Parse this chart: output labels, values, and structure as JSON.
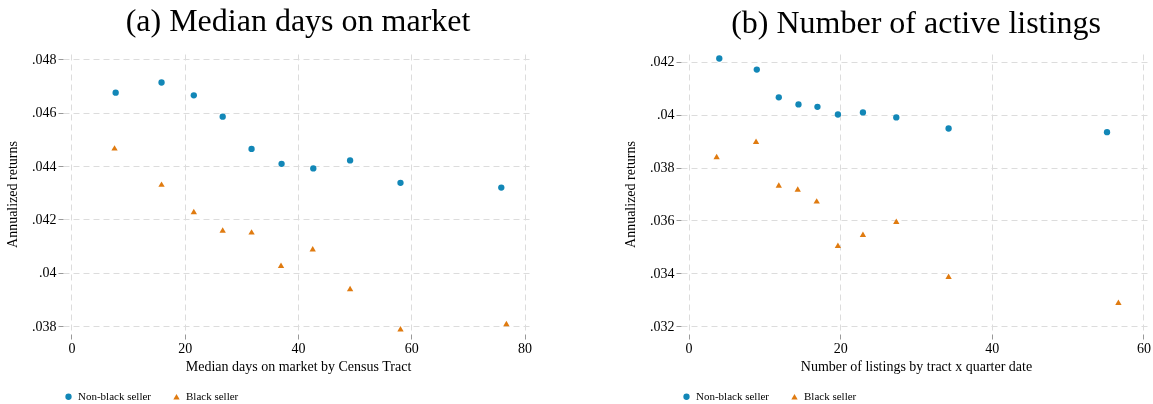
{
  "chart_data": [
    {
      "type": "scatter",
      "title": "(a) Median days on market",
      "xlabel": "Median days on market by Census Tract",
      "ylabel": "Annualized returns",
      "xlim": [
        -1.5,
        81.5
      ],
      "ylim": [
        0.0377,
        0.0482
      ],
      "xticks": [
        0,
        20,
        40,
        60,
        80
      ],
      "yticks": [
        {
          "value": 0.038,
          "label": ".038"
        },
        {
          "value": 0.04,
          "label": ".04"
        },
        {
          "value": 0.042,
          "label": ".042"
        },
        {
          "value": 0.044,
          "label": ".044"
        },
        {
          "value": 0.046,
          "label": ".046"
        },
        {
          "value": 0.048,
          "label": ".048"
        }
      ],
      "grid": true,
      "legend": "bottom",
      "series": [
        {
          "name": "Non-black seller",
          "color": "#1287b7",
          "marker": "circle",
          "x": [
            7.8,
            15.9,
            21.6,
            26.7,
            31.8,
            37.1,
            42.7,
            49.2,
            58.1,
            75.9
          ],
          "values": [
            0.04675,
            0.04713,
            0.04665,
            0.04585,
            0.04464,
            0.04408,
            0.04391,
            0.04421,
            0.04337,
            0.04319
          ]
        },
        {
          "name": "Black seller",
          "color": "#e07b10",
          "marker": "triangle",
          "x": [
            7.6,
            15.9,
            21.6,
            26.7,
            31.8,
            37.0,
            42.6,
            49.2,
            58.1,
            76.8
          ],
          "values": [
            0.04468,
            0.04332,
            0.04229,
            0.0416,
            0.04153,
            0.04028,
            0.0409,
            0.03941,
            0.0379,
            0.03809
          ]
        }
      ]
    },
    {
      "type": "scatter",
      "title": "(b) Number of active listings",
      "xlabel": "Number of listings by tract x quarter date",
      "ylabel": "Annualized returns",
      "xlim": [
        -1,
        61
      ],
      "ylim": [
        0.0317,
        0.0423
      ],
      "xticks": [
        0,
        20,
        40,
        60
      ],
      "yticks": [
        {
          "value": 0.032,
          "label": ".032"
        },
        {
          "value": 0.034,
          "label": ".034"
        },
        {
          "value": 0.036,
          "label": ".036"
        },
        {
          "value": 0.038,
          "label": ".038"
        },
        {
          "value": 0.04,
          "label": ".04"
        },
        {
          "value": 0.042,
          "label": ".042"
        }
      ],
      "grid": true,
      "legend": "bottom",
      "series": [
        {
          "name": "Non-black seller",
          "color": "#1287b7",
          "marker": "circle",
          "x": [
            4.05,
            9.0,
            11.9,
            14.5,
            17.0,
            19.7,
            23.0,
            27.4,
            34.3,
            55.2
          ],
          "values": [
            0.04213,
            0.04171,
            0.04066,
            0.04039,
            0.0403,
            0.04001,
            0.04009,
            0.0399,
            0.03948,
            0.03934
          ]
        },
        {
          "name": "Black seller",
          "color": "#e07b10",
          "marker": "triangle",
          "x": [
            3.7,
            8.9,
            11.9,
            14.4,
            16.9,
            19.7,
            23.0,
            27.4,
            34.3,
            56.7
          ],
          "values": [
            0.03842,
            0.039,
            0.03734,
            0.03719,
            0.03674,
            0.03506,
            0.03548,
            0.03597,
            0.03389,
            0.0329
          ]
        }
      ]
    }
  ]
}
